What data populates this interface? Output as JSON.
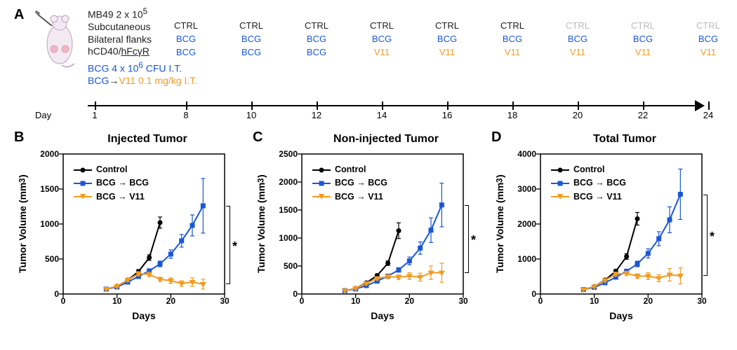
{
  "panelA": {
    "label": "A",
    "setup": {
      "line1": "MB49 2 x 10",
      "line1_sup": "5",
      "line2": "Subcutaneous",
      "line3": "Bilateral flanks",
      "line4a": "hCD40/",
      "line4b": "hFcγR",
      "bcg_line_pre": "BCG 4 x 10",
      "bcg_line_sup": "6",
      "bcg_line_post": " CFU I.T.",
      "combo_pre": "BCG",
      "combo_arrow": "→",
      "combo_v11": "V11",
      "combo_dose": " 0.1 mg/kg I.T."
    },
    "day_axis_label": "Day",
    "days": [
      1,
      8,
      10,
      12,
      14,
      16,
      18,
      20,
      22,
      24
    ],
    "columns": {
      "ctrl_black_count": 6,
      "ctrl_grey_count": 3,
      "ctrl_label": "CTRL",
      "bcg_label": "BCG",
      "v11_label": "V11",
      "bcg_to_v11_switch_at_day": 14
    }
  },
  "common": {
    "x_axis_label": "Days",
    "y_axis_label_html": "Tumor Volume (mm<sup>3</sup>)",
    "y_axis_label_text": "Tumor Volume (mm³)",
    "xlim": [
      0,
      30
    ],
    "xticks": [
      0,
      10,
      20,
      30
    ],
    "series_meta": {
      "control": {
        "label": "Control",
        "color": "#000000",
        "marker": "circle"
      },
      "bcg": {
        "label": "BCG → BCG",
        "color": "#1a57d6",
        "marker": "square"
      },
      "v11": {
        "label": "BCG → V11",
        "color": "#f29b1f",
        "marker": "triangle-down"
      }
    },
    "x_days": [
      8,
      10,
      12,
      14,
      16,
      18,
      20,
      22,
      24,
      26
    ]
  },
  "panelB": {
    "label": "B",
    "title": "Injected Tumor",
    "ylim": [
      0,
      2000
    ],
    "yticks": [
      0,
      500,
      1000,
      1500,
      2000
    ],
    "series": {
      "control": {
        "y": [
          70,
          110,
          200,
          320,
          520,
          1020
        ],
        "err": [
          10,
          12,
          20,
          30,
          40,
          80
        ],
        "x_count": 6
      },
      "bcg": {
        "y": [
          70,
          100,
          170,
          250,
          330,
          430,
          570,
          760,
          980,
          1260
        ],
        "err": [
          10,
          12,
          18,
          25,
          30,
          40,
          60,
          90,
          150,
          390
        ]
      },
      "v11": {
        "y": [
          70,
          110,
          200,
          290,
          280,
          210,
          190,
          150,
          170,
          140
        ],
        "err": [
          10,
          12,
          20,
          30,
          30,
          30,
          40,
          40,
          60,
          70
        ]
      }
    },
    "sig_between": [
      "bcg",
      "v11"
    ],
    "sig_label": "*"
  },
  "panelC": {
    "label": "C",
    "title": "Non-injected Tumor",
    "ylim": [
      0,
      2500
    ],
    "yticks": [
      0,
      500,
      1000,
      1500,
      2000,
      2500
    ],
    "series": {
      "control": {
        "y": [
          60,
          100,
          200,
          330,
          550,
          1130
        ],
        "err": [
          8,
          10,
          18,
          28,
          40,
          140
        ],
        "x_count": 6
      },
      "bcg": {
        "y": [
          60,
          90,
          150,
          230,
          320,
          430,
          590,
          820,
          1140,
          1590
        ],
        "err": [
          8,
          10,
          16,
          24,
          30,
          40,
          70,
          110,
          220,
          390
        ]
      },
      "v11": {
        "y": [
          60,
          100,
          190,
          280,
          310,
          300,
          320,
          300,
          380,
          380
        ],
        "err": [
          8,
          10,
          18,
          28,
          35,
          40,
          60,
          70,
          120,
          170
        ]
      }
    },
    "sig_between": [
      "bcg",
      "v11"
    ],
    "sig_label": "*"
  },
  "panelD": {
    "label": "D",
    "title": "Total Tumor",
    "ylim": [
      0,
      4000
    ],
    "yticks": [
      0,
      1000,
      2000,
      3000,
      4000
    ],
    "series": {
      "control": {
        "y": [
          130,
          210,
          400,
          650,
          1070,
          2150
        ],
        "err": [
          15,
          20,
          35,
          55,
          80,
          180
        ],
        "x_count": 6
      },
      "bcg": {
        "y": [
          130,
          190,
          320,
          480,
          650,
          860,
          1160,
          1580,
          2120,
          2850
        ],
        "err": [
          15,
          20,
          32,
          48,
          60,
          80,
          130,
          200,
          370,
          720
        ]
      },
      "v11": {
        "y": [
          130,
          210,
          390,
          570,
          590,
          510,
          510,
          450,
          550,
          520
        ],
        "err": [
          15,
          20,
          35,
          55,
          60,
          65,
          95,
          100,
          180,
          230
        ]
      }
    },
    "sig_between": [
      "bcg",
      "v11"
    ],
    "sig_label": "*"
  },
  "style": {
    "background": "#ffffff",
    "line_width": 2,
    "marker_size": 7,
    "errorbar_width": 1.2,
    "tick_fontsize": 12,
    "label_fontsize": 14,
    "title_fontsize": 16,
    "panel_label_fontsize": 20
  }
}
